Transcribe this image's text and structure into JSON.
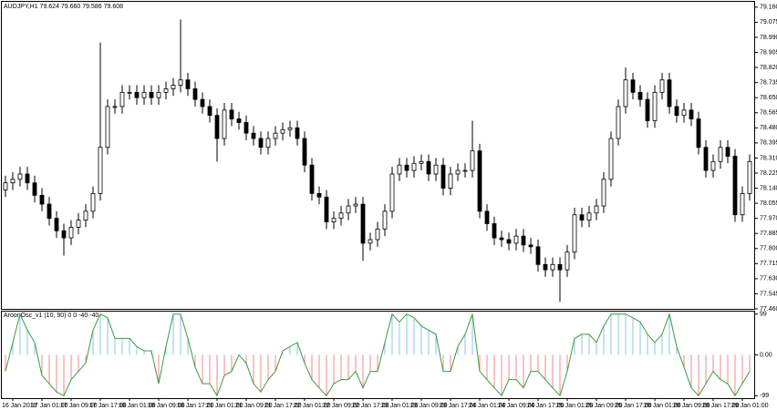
{
  "chart_data": [
    {
      "type": "candlestick",
      "title": "AUDJPY,H1  79.624 79.660 79.586 79.608",
      "categories": [
        null,
        "16 Jan 2019",
        null,
        null,
        null,
        "17 Jan 01:00",
        null,
        null,
        null,
        "17 Jan 09:00",
        null,
        null,
        null,
        "17 Jan 17:00",
        null,
        null,
        null,
        "18 Jan 01:00",
        null,
        null,
        null,
        "18 Jan 09:00",
        null,
        null,
        null,
        "18 Jan 17:00",
        null,
        null,
        null,
        "21 Jan 01:00",
        null,
        null,
        null,
        "21 Jan 09:00",
        null,
        null,
        null,
        "21 Jan 17:00",
        null,
        null,
        null,
        "22 Jan 01:00",
        null,
        null,
        null,
        "22 Jan 09:00",
        null,
        null,
        null,
        "22 Jan 17:00",
        null,
        null,
        null,
        "23 Jan 01:00",
        null,
        null,
        null,
        "23 Jan 09:00",
        null,
        null,
        null,
        "23 Jan 17:00",
        null,
        null,
        null,
        "24 Jan 01:00",
        null,
        null,
        null,
        "24 Jan 09:00",
        null,
        null,
        null,
        "24 Jan 17:00",
        null,
        null,
        null,
        "25 Jan 01:00",
        null,
        null,
        null,
        "25 Jan 09:00",
        null,
        null,
        null,
        "25 Jan 17:00",
        null,
        null,
        null,
        "28 Jan 01:00",
        null,
        null,
        null,
        "28 Jan 09:00",
        null,
        null,
        null,
        "28 Jan 17:00",
        null,
        null,
        null,
        "29 Jan 01:00",
        null
      ],
      "open": [
        78.13,
        78.17,
        78.19,
        78.22,
        78.17,
        78.1,
        78.05,
        77.97,
        77.9,
        77.86,
        77.92,
        77.96,
        78.01,
        78.11,
        78.37,
        78.6,
        78.6,
        78.68,
        78.68,
        78.65,
        78.68,
        78.65,
        78.68,
        78.7,
        78.72,
        78.75,
        78.7,
        78.64,
        78.6,
        78.55,
        78.42,
        78.58,
        78.53,
        78.51,
        78.45,
        78.42,
        78.37,
        78.42,
        78.45,
        78.47,
        78.48,
        78.42,
        78.27,
        78.11,
        78.09,
        77.95,
        77.97,
        78.0,
        78.04,
        78.05,
        77.83,
        77.85,
        77.91,
        78.01,
        78.22,
        78.27,
        78.24,
        78.28,
        78.29,
        78.22,
        78.27,
        78.14,
        78.22,
        78.24,
        78.24,
        78.35,
        78.01,
        77.94,
        77.86,
        77.85,
        77.83,
        77.87,
        77.82,
        77.81,
        77.71,
        77.68,
        77.71,
        77.68,
        77.78,
        77.99,
        77.96,
        78.0,
        78.04,
        78.19,
        78.42,
        78.6,
        78.75,
        78.68,
        78.64,
        78.52,
        78.68,
        78.75,
        78.6,
        78.55,
        78.58,
        78.53,
        78.37,
        78.24,
        78.29,
        78.37,
        78.32,
        77.99,
        78.11
      ],
      "high": [
        78.21,
        78.23,
        78.26,
        78.26,
        78.21,
        78.14,
        78.09,
        78.01,
        77.94,
        77.96,
        78.0,
        78.05,
        78.15,
        78.96,
        78.64,
        78.64,
        78.72,
        78.72,
        78.72,
        78.72,
        78.72,
        78.72,
        78.74,
        78.76,
        79.09,
        78.79,
        78.74,
        78.68,
        78.64,
        78.59,
        78.62,
        78.62,
        78.57,
        78.55,
        78.49,
        78.46,
        78.46,
        78.49,
        78.51,
        78.52,
        78.52,
        78.46,
        78.31,
        78.15,
        78.13,
        78.01,
        78.04,
        78.08,
        78.09,
        78.09,
        77.89,
        77.95,
        78.05,
        78.26,
        78.31,
        78.31,
        78.32,
        78.33,
        78.33,
        78.31,
        78.31,
        78.26,
        78.28,
        78.28,
        78.52,
        78.39,
        78.05,
        77.98,
        77.9,
        77.89,
        77.91,
        77.91,
        77.86,
        77.85,
        77.75,
        77.75,
        77.75,
        77.82,
        78.03,
        78.03,
        78.04,
        78.08,
        78.23,
        78.46,
        78.64,
        78.82,
        78.79,
        78.72,
        78.68,
        78.72,
        78.79,
        78.79,
        78.64,
        78.62,
        78.62,
        78.57,
        78.41,
        78.33,
        78.41,
        78.41,
        78.36,
        78.15,
        78.33
      ],
      "low": [
        78.09,
        78.13,
        78.15,
        78.13,
        78.06,
        78.01,
        77.93,
        77.86,
        77.76,
        77.82,
        77.88,
        77.92,
        77.97,
        78.07,
        78.33,
        78.56,
        78.56,
        78.64,
        78.61,
        78.61,
        78.61,
        78.61,
        78.64,
        78.66,
        78.68,
        78.66,
        78.6,
        78.56,
        78.51,
        78.29,
        78.38,
        78.49,
        78.47,
        78.41,
        78.38,
        78.33,
        78.33,
        78.38,
        78.41,
        78.43,
        78.38,
        78.23,
        78.07,
        78.05,
        77.91,
        77.91,
        77.93,
        77.96,
        78.0,
        77.73,
        77.79,
        77.81,
        77.87,
        77.97,
        78.18,
        78.2,
        78.2,
        78.24,
        78.18,
        78.18,
        78.1,
        78.1,
        78.18,
        78.2,
        78.2,
        77.97,
        77.9,
        77.82,
        77.81,
        77.79,
        77.79,
        77.78,
        77.77,
        77.67,
        77.64,
        77.64,
        77.5,
        77.64,
        77.74,
        77.92,
        77.92,
        77.96,
        78.0,
        78.15,
        78.38,
        78.56,
        78.64,
        78.6,
        78.48,
        78.48,
        78.64,
        78.56,
        78.51,
        78.51,
        78.49,
        78.33,
        78.2,
        78.2,
        78.25,
        78.28,
        77.95,
        77.95,
        78.07
      ],
      "close": [
        78.17,
        78.19,
        78.22,
        78.17,
        78.1,
        78.05,
        77.97,
        77.9,
        77.86,
        77.92,
        77.96,
        78.01,
        78.11,
        78.37,
        78.6,
        78.6,
        78.68,
        78.68,
        78.65,
        78.68,
        78.65,
        78.68,
        78.7,
        78.72,
        78.75,
        78.7,
        78.64,
        78.6,
        78.55,
        78.42,
        78.58,
        78.53,
        78.51,
        78.45,
        78.42,
        78.37,
        78.42,
        78.45,
        78.47,
        78.48,
        78.42,
        78.27,
        78.11,
        78.09,
        77.95,
        77.97,
        78.0,
        78.04,
        78.05,
        77.83,
        77.85,
        77.91,
        78.01,
        78.22,
        78.27,
        78.24,
        78.28,
        78.29,
        78.22,
        78.27,
        78.14,
        78.22,
        78.24,
        78.24,
        78.35,
        78.01,
        77.94,
        77.86,
        77.85,
        77.83,
        77.87,
        77.82,
        77.81,
        77.71,
        77.68,
        77.71,
        77.68,
        77.78,
        77.99,
        77.96,
        78.0,
        78.04,
        78.19,
        78.42,
        78.6,
        78.75,
        78.68,
        78.64,
        78.52,
        78.68,
        78.75,
        78.6,
        78.55,
        78.58,
        78.53,
        78.37,
        78.24,
        78.29,
        78.37,
        78.32,
        77.99,
        78.11,
        78.29
      ],
      "up_color": "#ffffff",
      "down_color": "#000000",
      "edge_color": "#000000",
      "ylim": [
        77.46,
        79.19
      ],
      "yticks": [
        {
          "value": 79.16,
          "label": "79.160"
        },
        {
          "value": 79.075,
          "label": "79.075"
        },
        {
          "value": 78.99,
          "label": "78.990"
        },
        {
          "value": 78.905,
          "label": "78.905"
        },
        {
          "value": 78.82,
          "label": "78.820"
        },
        {
          "value": 78.735,
          "label": "78.735"
        },
        {
          "value": 78.65,
          "label": "78.650"
        },
        {
          "value": 78.565,
          "label": "78.565"
        },
        {
          "value": 78.48,
          "label": "78.480"
        },
        {
          "value": 78.395,
          "label": "78.395"
        },
        {
          "value": 78.31,
          "label": "78.310"
        },
        {
          "value": 78.225,
          "label": "78.225"
        },
        {
          "value": 78.14,
          "label": "78.140"
        },
        {
          "value": 78.055,
          "label": "78.055"
        },
        {
          "value": 77.97,
          "label": "77.970"
        },
        {
          "value": 77.885,
          "label": "77.885"
        },
        {
          "value": 77.8,
          "label": "77.800"
        },
        {
          "value": 77.715,
          "label": "77.715"
        },
        {
          "value": 77.63,
          "label": "77.630"
        },
        {
          "value": 77.545,
          "label": "77.545"
        },
        {
          "value": 77.46,
          "label": "77.460"
        }
      ]
    },
    {
      "type": "oscillator",
      "title": "AroonOsc_v1 (10, 90) 0 0 -40 -40",
      "values": [
        -40,
        30,
        99,
        60,
        30,
        -50,
        -70,
        -90,
        -99,
        -60,
        -40,
        -20,
        60,
        99,
        90,
        40,
        40,
        40,
        20,
        10,
        10,
        -70,
        20,
        99,
        99,
        40,
        -30,
        -70,
        -70,
        -99,
        -50,
        -40,
        0,
        -20,
        -70,
        -90,
        -60,
        -40,
        10,
        20,
        30,
        -20,
        -60,
        -80,
        -99,
        -70,
        -60,
        -60,
        -40,
        -80,
        -40,
        -40,
        30,
        99,
        80,
        99,
        90,
        70,
        60,
        50,
        -40,
        -40,
        20,
        50,
        99,
        -40,
        -60,
        -80,
        -99,
        -60,
        -60,
        -80,
        -40,
        -40,
        -60,
        -80,
        -99,
        -40,
        40,
        50,
        50,
        30,
        70,
        99,
        99,
        99,
        90,
        80,
        50,
        30,
        50,
        99,
        20,
        -30,
        -80,
        -99,
        -70,
        -40,
        -60,
        -70,
        -99,
        -70,
        -40
      ],
      "color": "#3c9a3c",
      "up_color": "#87c5ea",
      "down_color": "#f08a8a",
      "ylim": [
        -105,
        105
      ],
      "yticks": [
        99,
        {
          "value": 0,
          "label": "0.00"
        },
        -99
      ]
    }
  ]
}
